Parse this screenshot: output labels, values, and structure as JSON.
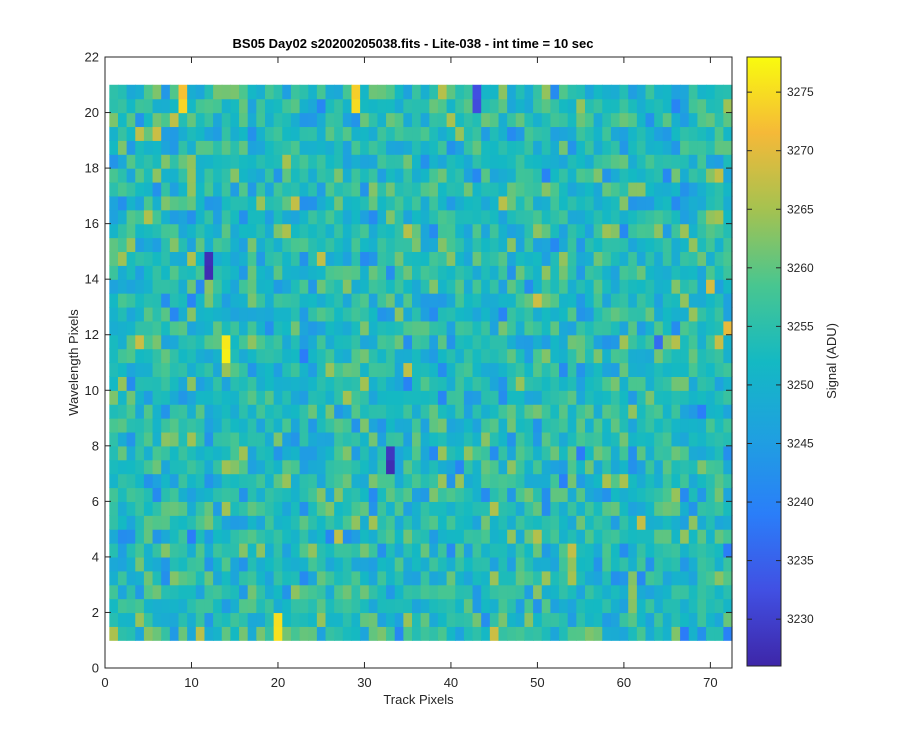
{
  "chart_data": {
    "type": "heatmap",
    "title": "BS05 Day02  s20200205038.fits - Lite-038 - int time = 10 sec",
    "xlabel": "Track Pixels",
    "ylabel": "Wavelength Pixels",
    "xlim": [
      0,
      72.5
    ],
    "ylim": [
      0,
      22
    ],
    "x_ticks": [
      0,
      10,
      20,
      30,
      40,
      50,
      60,
      70
    ],
    "y_ticks": [
      0,
      2,
      4,
      6,
      8,
      10,
      12,
      14,
      16,
      18,
      20,
      22
    ],
    "x_cells": [
      1,
      72
    ],
    "y_cells": [
      1,
      21
    ],
    "colorbar": {
      "label": "Signal (ADU)",
      "range": [
        3226,
        3278
      ],
      "ticks": [
        3230,
        3235,
        3240,
        3245,
        3250,
        3255,
        3260,
        3265,
        3270,
        3275
      ],
      "colormap": "parula"
    },
    "notable_values": [
      {
        "x": 14,
        "y": 11.5,
        "value": 3277
      },
      {
        "x": 12,
        "y": 14.5,
        "value": 3227
      },
      {
        "x": 33,
        "y": 7.5,
        "value": 3228
      },
      {
        "x": 20,
        "y": 1.5,
        "value": 3275
      },
      {
        "x": 9,
        "y": 20.5,
        "value": 3274
      },
      {
        "x": 29,
        "y": 20.5,
        "value": 3274
      },
      {
        "x": 43,
        "y": 20.5,
        "value": 3232
      }
    ],
    "typical_range": [
      3245,
      3262
    ],
    "grid": false
  }
}
